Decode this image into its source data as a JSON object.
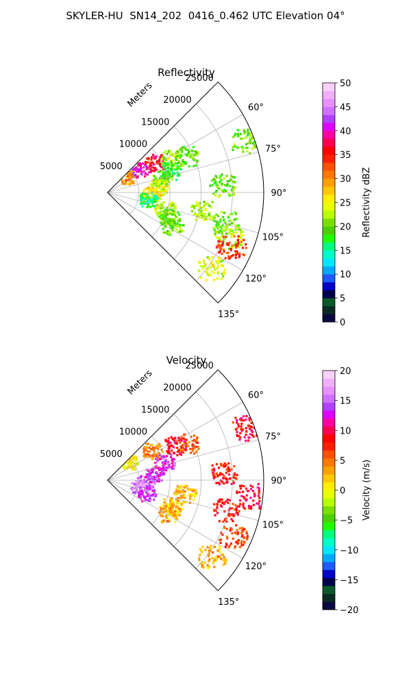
{
  "figure": {
    "title": "SKYLER-HU  SN14_202  0416_0.462 UTC Elevation 04°"
  },
  "chart_data": [
    {
      "type": "heatmap",
      "projection": "polar-sector",
      "title": "Reflectivity",
      "range_label": "Meters",
      "range_ticks": [
        "5000",
        "10000",
        "15000",
        "20000",
        "25000"
      ],
      "range_values": [
        5000,
        10000,
        15000,
        20000,
        25000
      ],
      "azimuth_ticks": [
        "60°",
        "75°",
        "90°",
        "105°",
        "120°",
        "135°"
      ],
      "azimuth_values": [
        60,
        75,
        90,
        105,
        120,
        135
      ],
      "azimuth_range": [
        45,
        135
      ],
      "range_max": 25000,
      "grid": true,
      "colorbar": {
        "label": "Reflectivity dBZ",
        "min": 0,
        "max": 50,
        "ticks": [
          "0",
          "5",
          "10",
          "15",
          "20",
          "25",
          "30",
          "35",
          "40",
          "45",
          "50"
        ],
        "tick_values": [
          0,
          5,
          10,
          15,
          20,
          25,
          30,
          35,
          40,
          45,
          50
        ],
        "colors": [
          "#0a0a40",
          "#0b2a22",
          "#0a5a2a",
          "#00004a",
          "#0000c8",
          "#1e5aff",
          "#00aaff",
          "#00e8ff",
          "#00ffc8",
          "#00ff80",
          "#20ff00",
          "#4ccf00",
          "#7ae000",
          "#b8ff00",
          "#e8ff00",
          "#ffee00",
          "#ffc800",
          "#ffa000",
          "#ff7800",
          "#ff5000",
          "#ff1e00",
          "#ff0000",
          "#ff0050",
          "#ff00a0",
          "#e000ff",
          "#b040ff",
          "#d070ff",
          "#e890ff",
          "#f0b0f8",
          "#f8d0f8"
        ]
      },
      "echoes": [
        {
          "az": 50,
          "r": 4000,
          "v": 30
        },
        {
          "az": 55,
          "r": 6500,
          "v": 40
        },
        {
          "az": 57,
          "r": 9000,
          "v": 36
        },
        {
          "az": 62,
          "r": 11500,
          "v": 22
        },
        {
          "az": 65,
          "r": 14000,
          "v": 20
        },
        {
          "az": 70,
          "r": 10500,
          "v": 18
        },
        {
          "az": 76,
          "r": 9000,
          "v": 20
        },
        {
          "az": 84,
          "r": 8000,
          "v": 24
        },
        {
          "az": 92,
          "r": 7000,
          "v": 26
        },
        {
          "az": 99,
          "r": 6500,
          "v": 16
        },
        {
          "az": 106,
          "r": 9500,
          "v": 22
        },
        {
          "az": 112,
          "r": 10500,
          "v": 20
        },
        {
          "az": 117,
          "r": 11500,
          "v": 20
        },
        {
          "az": 100,
          "r": 15500,
          "v": 22
        },
        {
          "az": 104,
          "r": 19500,
          "v": 20
        },
        {
          "az": 86,
          "r": 18500,
          "v": 20
        },
        {
          "az": 110,
          "r": 20500,
          "v": 22
        },
        {
          "az": 114,
          "r": 21500,
          "v": 34
        },
        {
          "az": 69,
          "r": 23500,
          "v": 20
        },
        {
          "az": 126,
          "r": 20500,
          "v": 24
        }
      ]
    },
    {
      "type": "heatmap",
      "projection": "polar-sector",
      "title": "Velocity",
      "range_label": "Meters",
      "range_ticks": [
        "5000",
        "10000",
        "15000",
        "20000",
        "25000"
      ],
      "range_values": [
        5000,
        10000,
        15000,
        20000,
        25000
      ],
      "azimuth_ticks": [
        "60°",
        "75°",
        "90°",
        "105°",
        "120°",
        "135°"
      ],
      "azimuth_values": [
        60,
        75,
        90,
        105,
        120,
        135
      ],
      "azimuth_range": [
        45,
        135
      ],
      "range_max": 25000,
      "grid": true,
      "colorbar": {
        "label": "Velocity (m/s)",
        "min": -20,
        "max": 20,
        "ticks": [
          "−20",
          "−15",
          "−10",
          "−5",
          "0",
          "5",
          "10",
          "15",
          "20"
        ],
        "tick_values": [
          -20,
          -15,
          -10,
          -5,
          0,
          5,
          10,
          15,
          20
        ],
        "colors": [
          "#0a0a40",
          "#0b2a22",
          "#0a5a2a",
          "#00004a",
          "#0000c8",
          "#1e5aff",
          "#00aaff",
          "#00e8ff",
          "#00ffc8",
          "#00ff80",
          "#20ff00",
          "#4ccf00",
          "#7ae000",
          "#b8ff00",
          "#e8ff00",
          "#ffee00",
          "#ffc800",
          "#ffa000",
          "#ff7800",
          "#ff5000",
          "#ff1e00",
          "#ff0000",
          "#ff0050",
          "#ff00a0",
          "#e000ff",
          "#b040ff",
          "#d070ff",
          "#e890ff",
          "#f0b0f8",
          "#f8d0f8"
        ]
      },
      "echoes": [
        {
          "az": 49,
          "r": 4500,
          "v": 0
        },
        {
          "az": 56,
          "r": 8500,
          "v": 4
        },
        {
          "az": 62,
          "r": 12000,
          "v": 9
        },
        {
          "az": 65,
          "r": 14000,
          "v": 6
        },
        {
          "az": 72,
          "r": 9500,
          "v": 13
        },
        {
          "az": 82,
          "r": 7500,
          "v": 13
        },
        {
          "az": 92,
          "r": 6000,
          "v": 14
        },
        {
          "az": 100,
          "r": 5000,
          "v": 16
        },
        {
          "az": 108,
          "r": 6500,
          "v": 14
        },
        {
          "az": 112,
          "r": 11000,
          "v": 2
        },
        {
          "az": 118,
          "r": 11000,
          "v": 3
        },
        {
          "az": 100,
          "r": 12500,
          "v": 2
        },
        {
          "az": 104,
          "r": 19500,
          "v": 8
        },
        {
          "az": 86,
          "r": 18500,
          "v": 8
        },
        {
          "az": 114,
          "r": 22000,
          "v": 7
        },
        {
          "az": 69,
          "r": 23500,
          "v": 9
        },
        {
          "az": 126,
          "r": 20500,
          "v": 3
        },
        {
          "az": 96,
          "r": 23000,
          "v": 9
        }
      ]
    }
  ]
}
